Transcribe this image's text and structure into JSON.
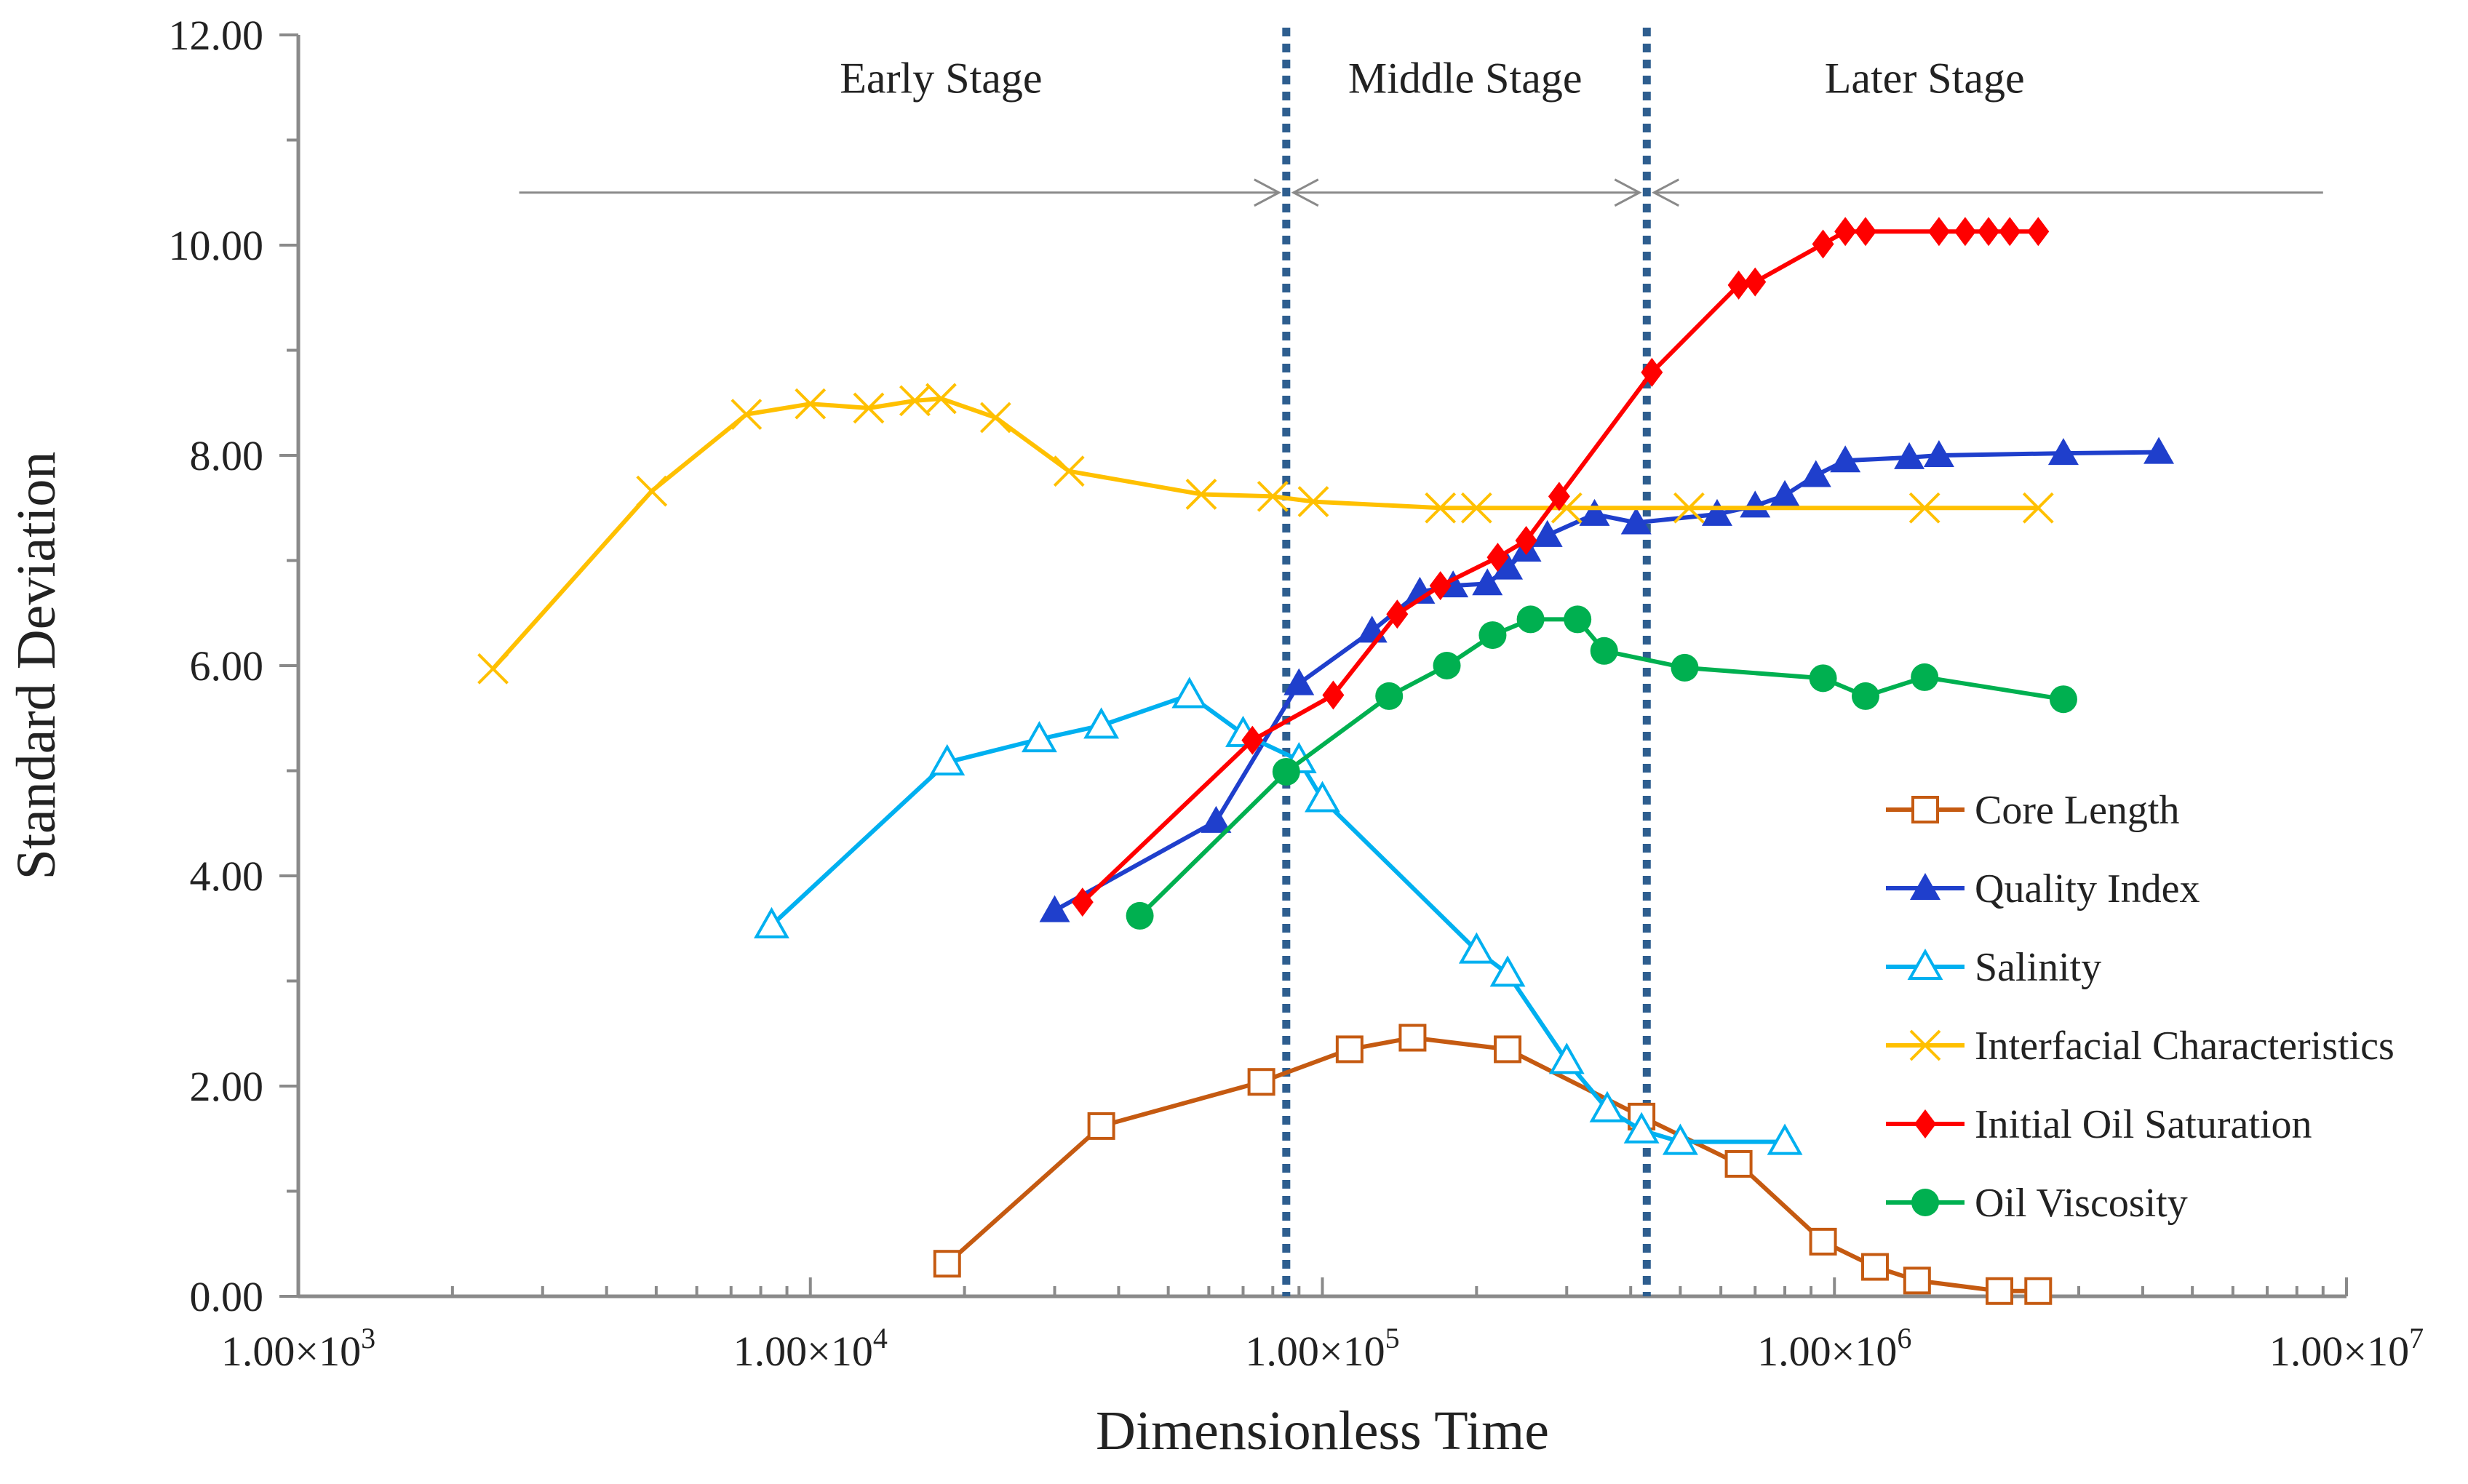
{
  "chart_data": {
    "type": "line",
    "title": "",
    "xlabel": "Dimensionless Time",
    "ylabel": "Standard Deviation",
    "xscale": "log",
    "xlim": [
      1000,
      10000000
    ],
    "ylim": [
      0,
      12
    ],
    "x_tick_values": [
      1000,
      10000,
      100000,
      1000000,
      10000000
    ],
    "x_tick_labels": [
      {
        "mantissa": "1.00",
        "times": "×",
        "base": "10",
        "exp": "3"
      },
      {
        "mantissa": "1.00",
        "times": "×",
        "base": "10",
        "exp": "4"
      },
      {
        "mantissa": "1.00",
        "times": "×",
        "base": "10",
        "exp": "5"
      },
      {
        "mantissa": "1.00",
        "times": "×",
        "base": "10",
        "exp": "6"
      },
      {
        "mantissa": "1.00",
        "times": "×",
        "base": "10",
        "exp": "7"
      }
    ],
    "y_ticks": [
      0,
      2,
      4,
      6,
      8,
      10,
      12
    ],
    "y_tick_labels": [
      "0.00",
      "2.00",
      "4.00",
      "6.00",
      "8.00",
      "10.00",
      "12.00"
    ],
    "stage_boundaries": [
      85000,
      430000
    ],
    "stage_arrow_range": [
      2700,
      9000000
    ],
    "stage_arrow_y": 10.5,
    "stages": [
      "Early Stage",
      "Middle Stage",
      "Later Stage"
    ],
    "stage_label_x": [
      18000,
      190000,
      1500000
    ],
    "stage_label_y": 11.45,
    "legend_position": "right",
    "series": [
      {
        "name": "Core Length",
        "color": "#C55A11",
        "marker": "open-square",
        "x": [
          18500,
          37000,
          76000,
          113000,
          150000,
          230000,
          420000,
          650000,
          950000,
          1200000,
          1450000,
          2100000,
          2500000
        ],
        "y": [
          0.31,
          1.62,
          2.04,
          2.35,
          2.46,
          2.35,
          1.71,
          1.26,
          0.52,
          0.28,
          0.15,
          0.05,
          0.05
        ]
      },
      {
        "name": "Quality Index",
        "color": "#1F3FCC",
        "marker": "filled-triangle",
        "x": [
          30000,
          62000,
          90000,
          125000,
          155000,
          180000,
          210000,
          230000,
          250000,
          275000,
          340000,
          410000,
          590000,
          700000,
          800000,
          920000,
          1050000,
          1400000,
          1600000,
          2800000,
          4300000
        ],
        "y": [
          3.67,
          4.52,
          5.83,
          6.33,
          6.7,
          6.76,
          6.78,
          6.93,
          7.1,
          7.24,
          7.44,
          7.36,
          7.44,
          7.52,
          7.62,
          7.81,
          7.95,
          7.98,
          8.0,
          8.02,
          8.03
        ]
      },
      {
        "name": "Salinity",
        "color": "#00B0F0",
        "marker": "open-triangle",
        "x": [
          8400,
          18500,
          28000,
          37000,
          55000,
          70000,
          90000,
          100000,
          200000,
          230000,
          300000,
          360000,
          420000,
          500000,
          800000
        ],
        "y": [
          3.53,
          5.08,
          5.3,
          5.43,
          5.72,
          5.35,
          5.1,
          4.73,
          3.29,
          3.07,
          2.24,
          1.78,
          1.58,
          1.47,
          1.47
        ]
      },
      {
        "name": "Interfacial Characteristics",
        "color": "#FFC000",
        "marker": "x",
        "x": [
          2400,
          4900,
          7500,
          10000,
          13000,
          16000,
          18000,
          23000,
          32000,
          58000,
          80000,
          96000,
          170000,
          200000,
          300000,
          520000,
          1500000,
          2500000
        ],
        "y": [
          5.97,
          7.66,
          8.39,
          8.49,
          8.45,
          8.52,
          8.54,
          8.36,
          7.85,
          7.63,
          7.61,
          7.56,
          7.5,
          7.5,
          7.5,
          7.5,
          7.5,
          7.5
        ]
      },
      {
        "name": "Initial Oil Saturation",
        "color": "#FF0000",
        "marker": "filled-diamond",
        "x": [
          34000,
          73000,
          105000,
          140000,
          170000,
          220000,
          250000,
          290000,
          440000,
          650000,
          700000,
          950000,
          1050000,
          1150000,
          1600000,
          1800000,
          2000000,
          2200000,
          2500000
        ],
        "y": [
          3.75,
          5.29,
          5.72,
          6.49,
          6.76,
          7.03,
          7.19,
          7.61,
          8.79,
          9.62,
          9.65,
          10.01,
          10.13,
          10.13,
          10.13,
          10.13,
          10.13,
          10.13,
          10.13
        ]
      },
      {
        "name": "Oil Viscosity",
        "color": "#00B050",
        "marker": "filled-circle",
        "x": [
          44000,
          85000,
          135000,
          175000,
          215000,
          255000,
          315000,
          355000,
          510000,
          950000,
          1150000,
          1500000,
          2800000
        ],
        "y": [
          3.62,
          4.99,
          5.71,
          6.0,
          6.29,
          6.44,
          6.44,
          6.14,
          5.98,
          5.88,
          5.71,
          5.89,
          5.68
        ]
      }
    ]
  }
}
